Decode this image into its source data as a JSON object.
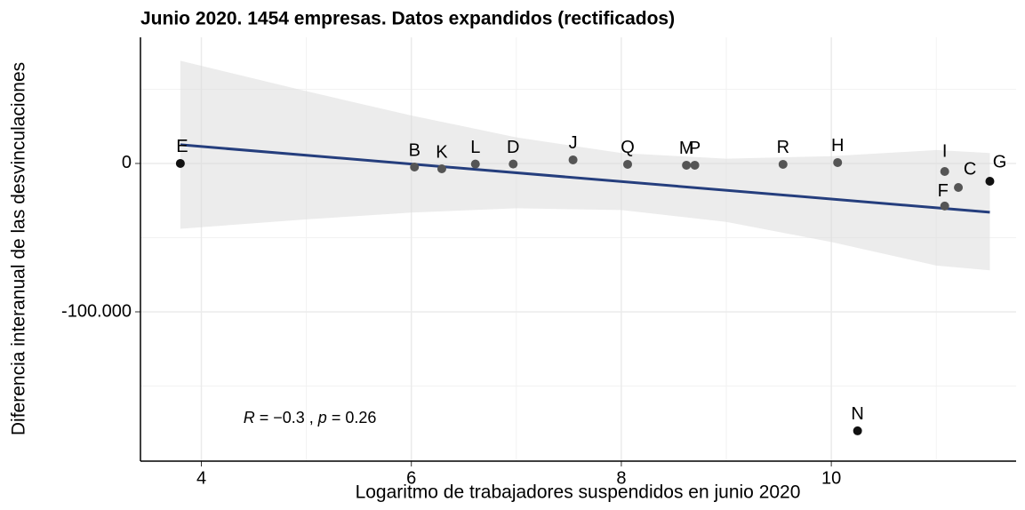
{
  "chart_data": {
    "type": "scatter",
    "title": "Junio 2020. 1454 empresas. Datos expandidos (rectificados)",
    "xlabel": "Logaritmo de trabajadores suspendidos en junio 2020",
    "ylabel": "Diferencia interanual de las desvinculaciones",
    "categories": [
      "E",
      "B",
      "K",
      "L",
      "D",
      "J",
      "Q",
      "M",
      "P",
      "R",
      "H",
      "I",
      "C",
      "F",
      "G",
      "N"
    ],
    "x": [
      3.8,
      6.03,
      6.29,
      6.61,
      6.97,
      7.54,
      8.06,
      8.62,
      8.7,
      9.54,
      10.06,
      11.08,
      11.21,
      11.08,
      11.51,
      10.25
    ],
    "values": [
      0,
      -2400,
      -3600,
      -400,
      -400,
      2400,
      -600,
      -1200,
      -1200,
      -600,
      600,
      -5400,
      -16200,
      -28700,
      -12000,
      -180200
    ],
    "colors": [
      "#111111",
      "#555555",
      "#555555",
      "#555555",
      "#555555",
      "#555555",
      "#555555",
      "#555555",
      "#555555",
      "#555555",
      "#555555",
      "#555555",
      "#555555",
      "#555555",
      "#111111",
      "#111111"
    ],
    "fit": {
      "color": "#253e7d",
      "x": [
        3.8,
        11.51
      ],
      "values": [
        12600,
        -32900
      ]
    },
    "band": {
      "color": "#d9d9d9",
      "x": [
        3.8,
        5,
        6,
        7,
        8,
        9,
        10,
        11,
        11.51
      ],
      "upper": [
        69200,
        48700,
        32300,
        17600,
        7000,
        3200,
        4900,
        9000,
        7000
      ],
      "lower": [
        -44000,
        -37700,
        -33100,
        -30200,
        -31400,
        -39400,
        -52900,
        -68800,
        -72000
      ]
    },
    "annotation": [
      {
        "text": "R",
        "italic": true
      },
      {
        "text": " = −0.3 , ",
        "italic": false
      },
      {
        "text": "p",
        "italic": true
      },
      {
        "text": " = 0.26",
        "italic": false
      }
    ],
    "annotation_at": {
      "x": 4.4,
      "y": -172000
    },
    "xlim": [
      3.42,
      11.76
    ],
    "ylim": [
      -200600,
      85000
    ],
    "xticks": [
      4,
      6,
      8,
      10
    ],
    "xminorticks": [
      5,
      7,
      9,
      11
    ],
    "yticks": [
      0,
      {
        "value": -100000,
        "label": "-100.000"
      }
    ],
    "yminorticks": [
      50000,
      -50000,
      -150000
    ],
    "grid": true
  }
}
